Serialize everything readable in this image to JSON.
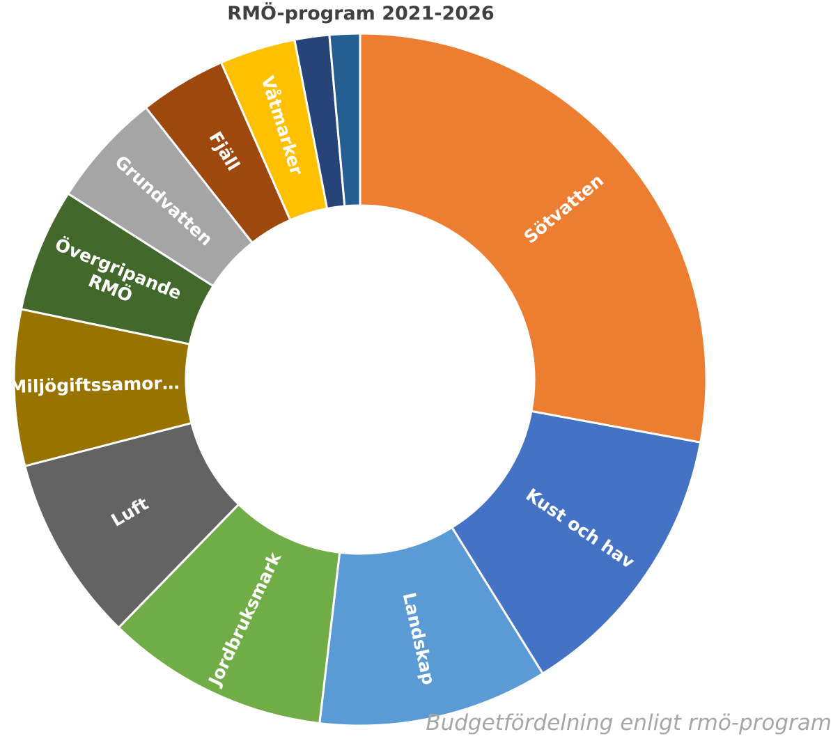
{
  "chart_data": {
    "type": "pie",
    "variant": "doughnut",
    "title": "RMÖ-program 2021-2026",
    "caption": "Budgetfördelning enligt rmö-program",
    "legend": "none",
    "slices": [
      {
        "label": "Sötvatten",
        "display": "Sötvatten",
        "value": 27.6,
        "color": "#ED7D31"
      },
      {
        "label": "Kust och hav",
        "display": "Kust och hav",
        "value": 13.1,
        "color": "#4472C4"
      },
      {
        "label": "Landskap",
        "display": "Landskap",
        "value": 10.6,
        "color": "#5B9BD5"
      },
      {
        "label": "Jordbruksmark",
        "display": "Jordbruksmark",
        "value": 10.3,
        "color": "#70AD47"
      },
      {
        "label": "Luft",
        "display": "Luft",
        "value": 8.6,
        "color": "#636363"
      },
      {
        "label": "Miljögiftssamordning",
        "display": "Miljögiftssamor…",
        "value": 7.2,
        "color": "#997300"
      },
      {
        "label": "Övergripande RMÖ",
        "display": "Övergripande\nRMÖ",
        "value": 5.7,
        "color": "#43682B"
      },
      {
        "label": "Grundvatten",
        "display": "Grundvatten",
        "value": 5.3,
        "color": "#A5A5A5"
      },
      {
        "label": "Fjäll",
        "display": "Fjäll",
        "value": 4.0,
        "color": "#9E480E"
      },
      {
        "label": "Våtmarker",
        "display": "Våtmarker",
        "value": 3.5,
        "color": "#FFC000"
      },
      {
        "label": "",
        "display": "",
        "value": 1.6,
        "color": "#264478"
      },
      {
        "label": "",
        "display": "",
        "value": 1.4,
        "color": "#255E91"
      }
    ]
  }
}
